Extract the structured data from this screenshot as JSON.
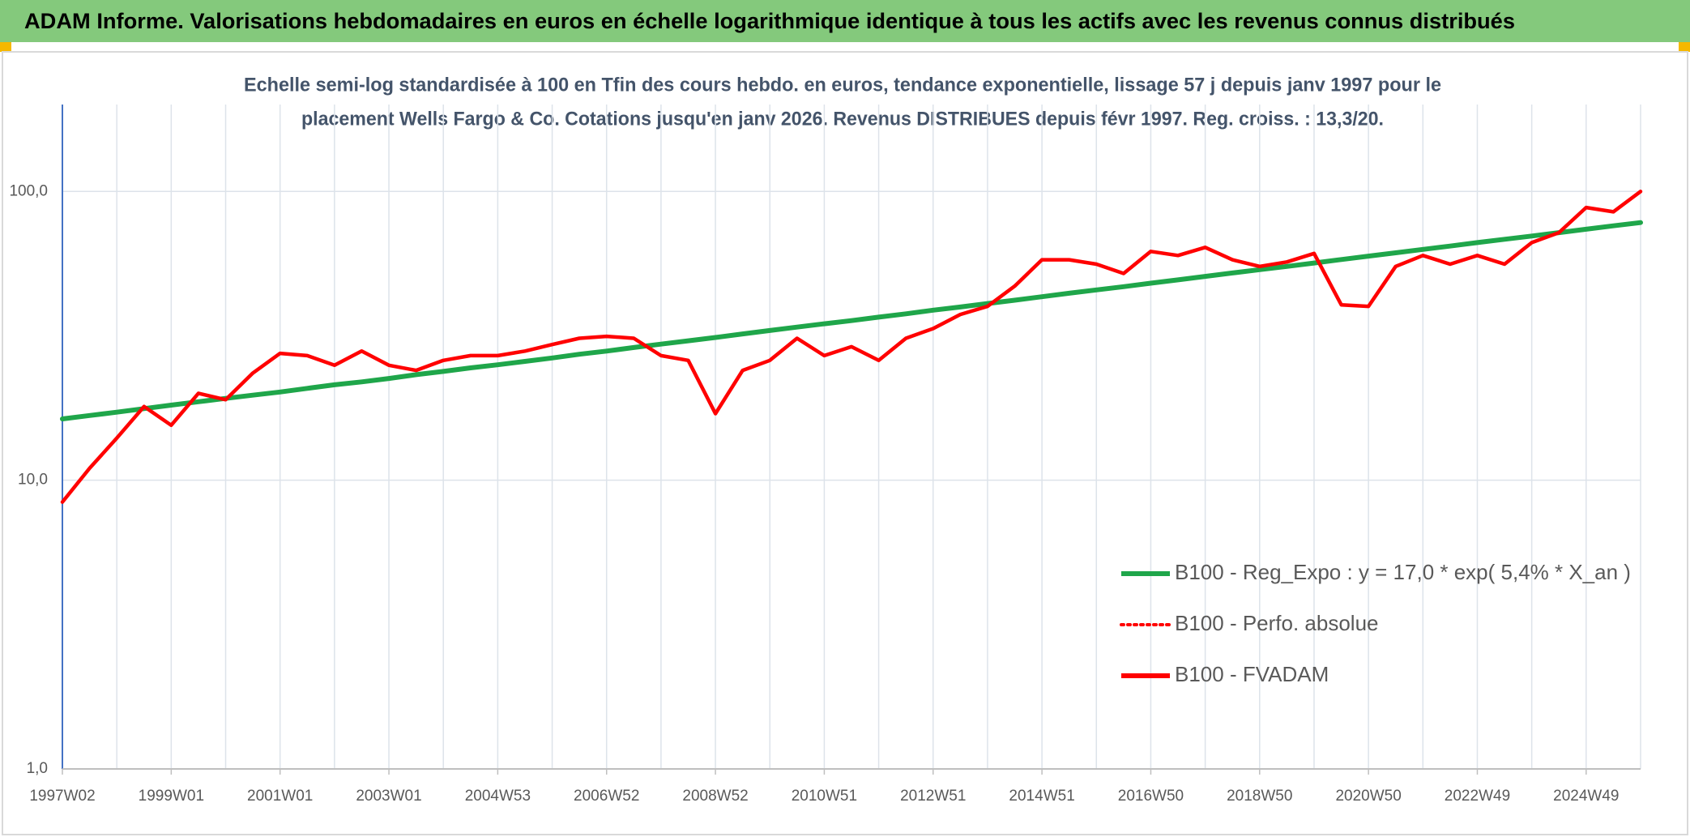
{
  "chart_data": {
    "type": "line",
    "title": "ADAM Informe. Valorisations hebdomadaires en euros en échelle logarithmique identique à tous les actifs avec les revenus connus distribués",
    "subtitle": [
      "Echelle semi-log standardisée à 100 en Tfin des cours hebdo. en euros, tendance exponentielle, lissage 57 j depuis janv 1997 pour le",
      "placement Wells Fargo & Co. Cotations jusqu'en janv 2026. Revenus DISTRIBUES depuis févr 1997. Reg. croiss. : 13,3/20."
    ],
    "categories": [
      "1997W02",
      null,
      null,
      null,
      "1999W01",
      null,
      null,
      null,
      "2001W01",
      null,
      null,
      null,
      "2003W01",
      null,
      null,
      null,
      "2004W53",
      null,
      null,
      null,
      "2006W52",
      null,
      null,
      null,
      "2008W52",
      null,
      null,
      null,
      "2010W51",
      null,
      null,
      null,
      "2012W51",
      null,
      null,
      null,
      "2014W51",
      null,
      null,
      null,
      "2016W50",
      null,
      null,
      null,
      "2018W50",
      null,
      null,
      null,
      "2020W50",
      null,
      null,
      null,
      "2022W49",
      null,
      null,
      null,
      "2024W49",
      null,
      null
    ],
    "series": [
      {
        "name": "B100 - Reg_Expo : y = 17,0 * exp( 5,4% *  X_an )",
        "color": "#1fa64a",
        "style": "solid",
        "values": [
          16.3,
          16.75,
          17.2,
          17.7,
          18.2,
          18.7,
          19.2,
          19.7,
          20.2,
          20.8,
          21.4,
          21.9,
          22.5,
          23.2,
          23.8,
          24.5,
          25.1,
          25.8,
          26.5,
          27.3,
          28.0,
          28.8,
          29.6,
          30.4,
          31.2,
          32.1,
          33.0,
          33.9,
          34.8,
          35.7,
          36.7,
          37.7,
          38.8,
          39.8,
          40.9,
          42.0,
          43.2,
          44.4,
          45.6,
          46.8,
          48.1,
          49.4,
          50.8,
          52.2,
          53.6,
          55.0,
          56.5,
          58.1,
          59.7,
          61.3,
          63.0,
          64.7,
          66.5,
          68.3,
          70.1,
          72.0,
          74.0,
          76.0,
          78.0
        ]
      },
      {
        "name": "B100 - Perfo. absolue",
        "color": "#ff0000",
        "style": "dotted",
        "values": [
          null,
          null,
          null,
          null,
          null,
          null,
          null,
          null,
          null,
          null,
          null,
          null,
          null,
          null,
          null,
          null,
          null,
          null,
          null,
          null,
          null,
          null,
          null,
          null,
          null,
          null,
          null,
          null,
          null,
          null,
          null,
          null,
          null,
          null,
          null,
          null,
          null,
          null,
          null,
          null,
          null,
          null,
          null,
          null,
          null,
          null,
          null,
          null,
          null,
          null,
          null,
          null,
          null,
          null,
          null,
          null,
          null,
          null,
          null
        ]
      },
      {
        "name": "B100 - FVADAM",
        "color": "#ff0000",
        "style": "solid",
        "values": [
          8.4,
          11,
          14,
          18,
          15.5,
          20,
          19,
          23.5,
          27.5,
          27,
          25,
          28,
          25,
          24,
          26,
          27,
          27,
          28,
          29.5,
          31,
          31.5,
          31,
          27,
          26,
          17,
          24,
          26,
          31,
          27,
          29,
          26,
          31,
          33.5,
          37.5,
          40,
          47,
          58,
          58,
          56,
          52,
          62,
          60,
          64,
          58,
          55,
          57,
          61,
          40.5,
          40,
          55,
          60,
          56,
          60,
          56,
          66.5,
          72,
          88,
          85,
          100
        ]
      }
    ],
    "ylim": [
      1,
      200
    ],
    "yticks": [
      {
        "value": 1,
        "label": "1,0"
      },
      {
        "value": 10,
        "label": "10,0"
      },
      {
        "value": 100,
        "label": "100,0"
      }
    ],
    "log_scale": true,
    "grid": true,
    "legend": "right"
  }
}
